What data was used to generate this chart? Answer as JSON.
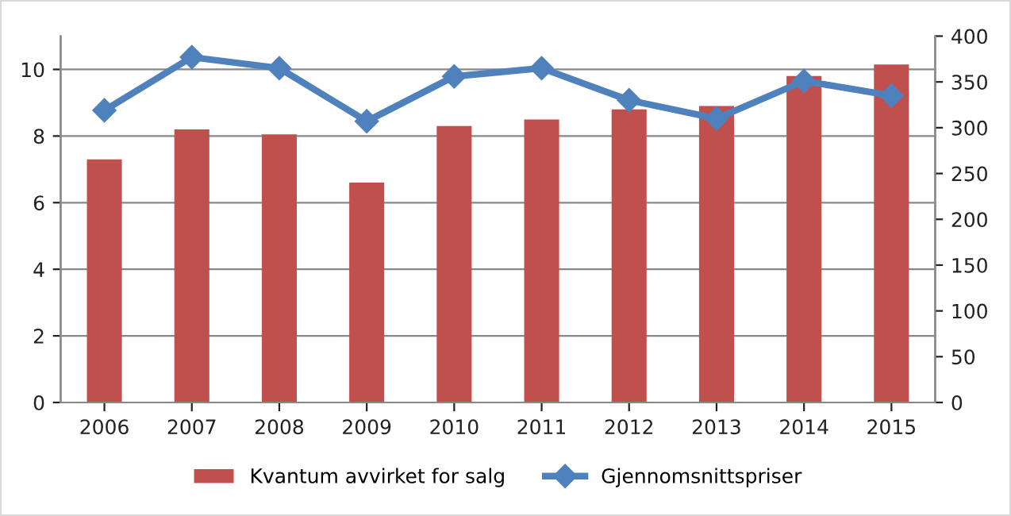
{
  "chart_data": {
    "type": "bar",
    "categories": [
      "2006",
      "2007",
      "2008",
      "2009",
      "2010",
      "2011",
      "2012",
      "2013",
      "2014",
      "2015"
    ],
    "series": [
      {
        "name": "Kvantum avvirket for salg",
        "color": "#c0504d",
        "values": [
          7.3,
          8.2,
          8.05,
          6.6,
          8.3,
          8.5,
          8.8,
          8.9,
          9.8,
          10.15
        ]
      },
      {
        "name": "Gjennomsnittspriser",
        "type": "line",
        "axis": "y2",
        "color": "#4f81bd",
        "marker": "diamond",
        "values": [
          319,
          377,
          365,
          307,
          356,
          365,
          330,
          310,
          351,
          335
        ]
      }
    ],
    "ylim": [
      0,
      11
    ],
    "yticks": [
      0,
      2,
      4,
      6,
      8,
      10
    ],
    "y2lim": [
      0,
      400
    ],
    "y2ticks": [
      0,
      50,
      100,
      150,
      200,
      250,
      300,
      350,
      400
    ],
    "grid": "y",
    "legend": "bottom"
  }
}
